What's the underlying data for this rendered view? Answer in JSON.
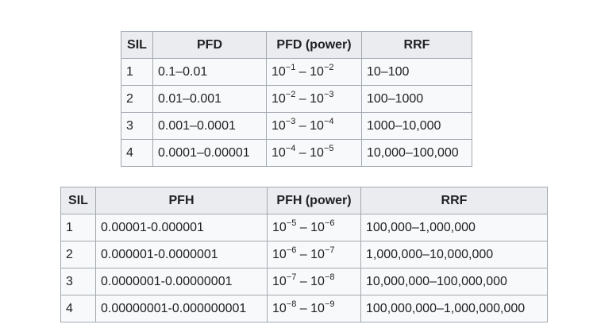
{
  "table_pfd": {
    "headers": [
      "SIL",
      "PFD",
      "PFD (power)",
      "RRF"
    ],
    "rows": [
      {
        "sil": "1",
        "pfd": "0.1–0.01",
        "p_base1": "10",
        "p_exp1": "−1",
        "p_sep": " – ",
        "p_base2": "10",
        "p_exp2": "−2",
        "rrf": "10–100"
      },
      {
        "sil": "2",
        "pfd": "0.01–0.001",
        "p_base1": "10",
        "p_exp1": "−2",
        "p_sep": " – ",
        "p_base2": "10",
        "p_exp2": "−3",
        "rrf": "100–1000"
      },
      {
        "sil": "3",
        "pfd": "0.001–0.0001",
        "p_base1": "10",
        "p_exp1": "−3",
        "p_sep": " – ",
        "p_base2": "10",
        "p_exp2": "−4",
        "rrf": "1000–10,000"
      },
      {
        "sil": "4",
        "pfd": "0.0001–0.00001",
        "p_base1": "10",
        "p_exp1": "−4",
        "p_sep": " – ",
        "p_base2": "10",
        "p_exp2": "−5",
        "rrf": "10,000–100,000"
      }
    ]
  },
  "table_pfh": {
    "headers": [
      "SIL",
      "PFH",
      "PFH (power)",
      "RRF"
    ],
    "rows": [
      {
        "sil": "1",
        "pfh": "0.00001-0.000001",
        "p_base1": "10",
        "p_exp1": "−5",
        "p_sep": " – ",
        "p_base2": "10",
        "p_exp2": "−6",
        "rrf": "100,000–1,000,000"
      },
      {
        "sil": "2",
        "pfh": "0.000001-0.0000001",
        "p_base1": "10",
        "p_exp1": "−6",
        "p_sep": " – ",
        "p_base2": "10",
        "p_exp2": "−7",
        "rrf": "1,000,000–10,000,000"
      },
      {
        "sil": "3",
        "pfh": "0.0000001-0.00000001",
        "p_base1": "10",
        "p_exp1": "−7",
        "p_sep": " – ",
        "p_base2": "10",
        "p_exp2": "−8",
        "rrf": "10,000,000–100,000,000"
      },
      {
        "sil": "4",
        "pfh": "0.00000001-0.000000001",
        "p_base1": "10",
        "p_exp1": "−8",
        "p_sep": " – ",
        "p_base2": "10",
        "p_exp2": "−9",
        "rrf": "100,000,000–1,000,000,000"
      }
    ]
  }
}
